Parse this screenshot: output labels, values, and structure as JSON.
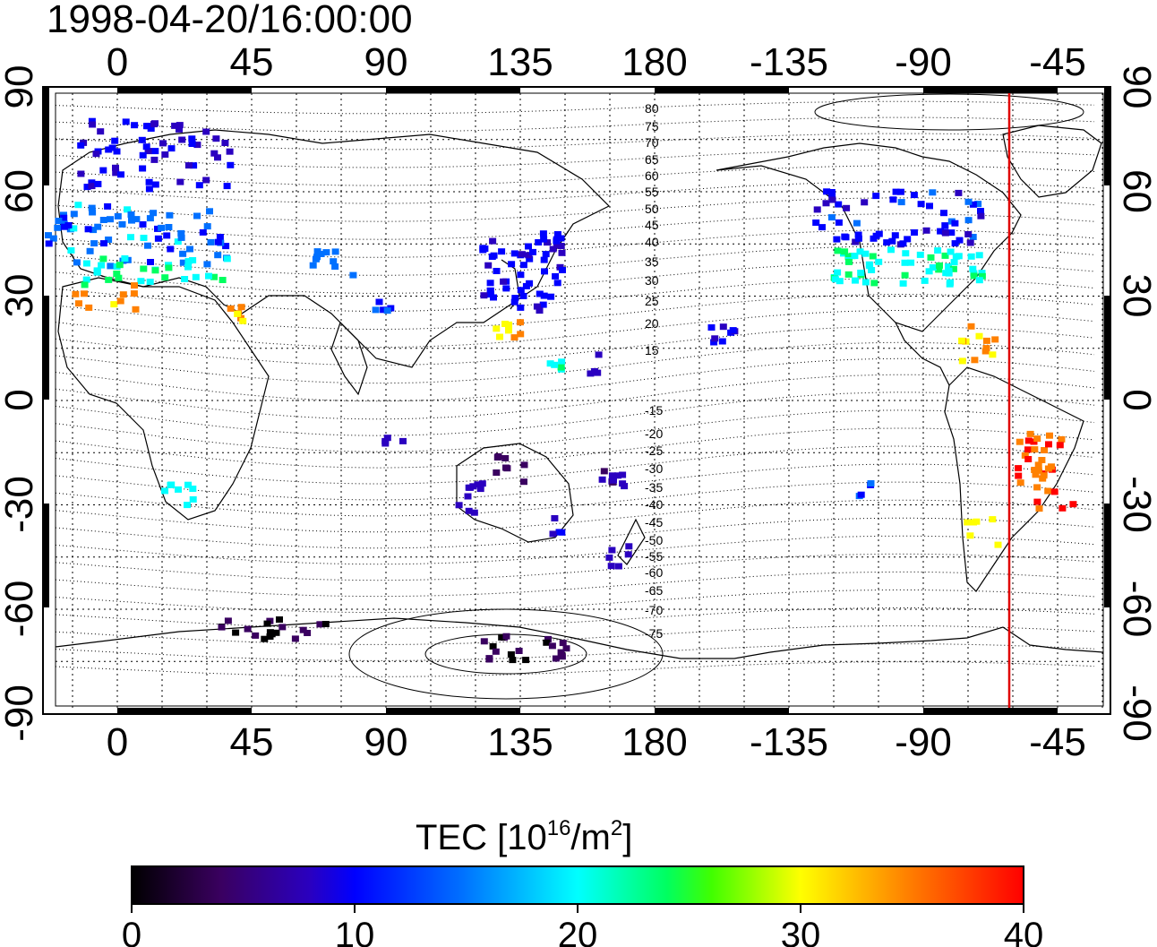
{
  "title": "1998-04-20/16:00:00",
  "map": {
    "lon_ticks": [
      "0",
      "45",
      "90",
      "135",
      "180",
      "-135",
      "-90",
      "-45"
    ],
    "lat_ticks": [
      "90",
      "60",
      "30",
      "0",
      "-30",
      "-60",
      "-90"
    ],
    "contour_labels": [
      "80",
      "75",
      "70",
      "65",
      "60",
      "55",
      "50",
      "45",
      "40",
      "35",
      "30",
      "25",
      "20",
      "15",
      "-15",
      "-20",
      "-25",
      "-30",
      "-35",
      "-40",
      "-45",
      "-50",
      "-55",
      "-60",
      "-65",
      "-70",
      "-75"
    ],
    "terminator_color": "#e00000"
  },
  "colorbar": {
    "label_main": "TEC  [10",
    "label_exp": "16",
    "label_mid": "/m",
    "label_exp2": "2",
    "label_end": "]",
    "min": 0,
    "max": 40,
    "ticks": [
      "0",
      "10",
      "20",
      "30",
      "40"
    ],
    "stops": [
      "#000000",
      "#3a0060",
      "#2a00c0",
      "#0000ff",
      "#0070ff",
      "#00ffff",
      "#00ff60",
      "#40ff00",
      "#ffff00",
      "#ff8000",
      "#ff0000"
    ]
  }
}
